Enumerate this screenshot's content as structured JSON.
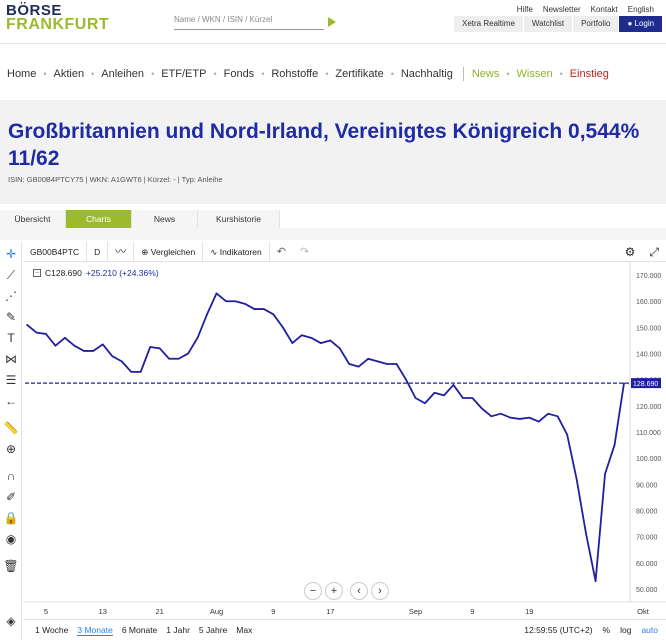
{
  "header": {
    "logo_line1": "BÖRSE",
    "logo_line2": "FRANKFURT",
    "search_placeholder": "Name / WKN / ISIN / Kürzel",
    "top_links": [
      "Hilfe",
      "Newsletter",
      "Kontakt",
      "English"
    ],
    "top_tabs": [
      "Xetra Realtime",
      "Watchlist",
      "Portfolio"
    ],
    "login": "Login"
  },
  "nav": {
    "items": [
      "Home",
      "Aktien",
      "Anleihen",
      "ETF/ETP",
      "Fonds",
      "Rohstoffe",
      "Zertifikate",
      "Nachhaltig"
    ],
    "extra": [
      "News",
      "Wissen",
      "Einstieg"
    ]
  },
  "instrument": {
    "title": "Großbritannien und Nord-Irland, Vereinigtes Königreich 0,544% 11/62",
    "meta": "ISIN: GB00B4PTCY75 | WKN: A1GWT6 | Kürzel: - | Typ: Anleihe"
  },
  "tabs": [
    {
      "label": "Übersicht",
      "active": false
    },
    {
      "label": "Charts",
      "active": true
    },
    {
      "label": "News",
      "active": false
    },
    {
      "label": "Kurshistorie",
      "active": false
    }
  ],
  "chart_toolbar": {
    "symbol": "GB00B4PTC",
    "interval": "D",
    "compare": "Vergleichen",
    "indicators": "Indikatoren"
  },
  "legend": {
    "close": "C128.690",
    "change": "+25.210 (+24.36%)"
  },
  "chart_data": {
    "type": "line",
    "color": "#1f1fa0",
    "ylim": [
      45,
      175
    ],
    "yticks": [
      50,
      60,
      70,
      80,
      90,
      100,
      110,
      120,
      130,
      140,
      150,
      160,
      170
    ],
    "last_price": 128.69,
    "last_price_label": "128.690",
    "xtick_labels": [
      "5",
      "13",
      "21",
      "Aug",
      "9",
      "17",
      "Sep",
      "9",
      "19",
      "Okt"
    ],
    "xtick_index": [
      2,
      8,
      14,
      20,
      26,
      32,
      41,
      47,
      53,
      65
    ],
    "values": [
      151,
      148,
      147.5,
      143,
      146,
      143,
      141,
      141,
      143.5,
      139,
      137,
      133,
      133,
      142.5,
      142,
      138,
      138,
      140,
      146,
      155,
      163,
      160,
      160,
      159,
      157,
      157,
      155,
      150,
      144,
      147,
      146,
      144,
      145,
      142,
      136,
      135,
      138,
      137,
      136,
      136,
      130,
      123,
      121,
      125,
      124,
      128,
      123,
      123,
      119,
      116,
      117,
      115.5,
      115,
      115.5,
      114,
      117,
      116,
      109,
      92,
      71,
      53,
      94,
      105,
      128.69
    ]
  },
  "bottom": {
    "ranges": [
      "1 Woche",
      "3 Monate",
      "6 Monate",
      "1 Jahr",
      "5 Jahre",
      "Max"
    ],
    "active_range": "3 Monate",
    "time": "12:59:55 (UTC+2)",
    "percent": "%",
    "log": "log",
    "auto": "auto"
  }
}
